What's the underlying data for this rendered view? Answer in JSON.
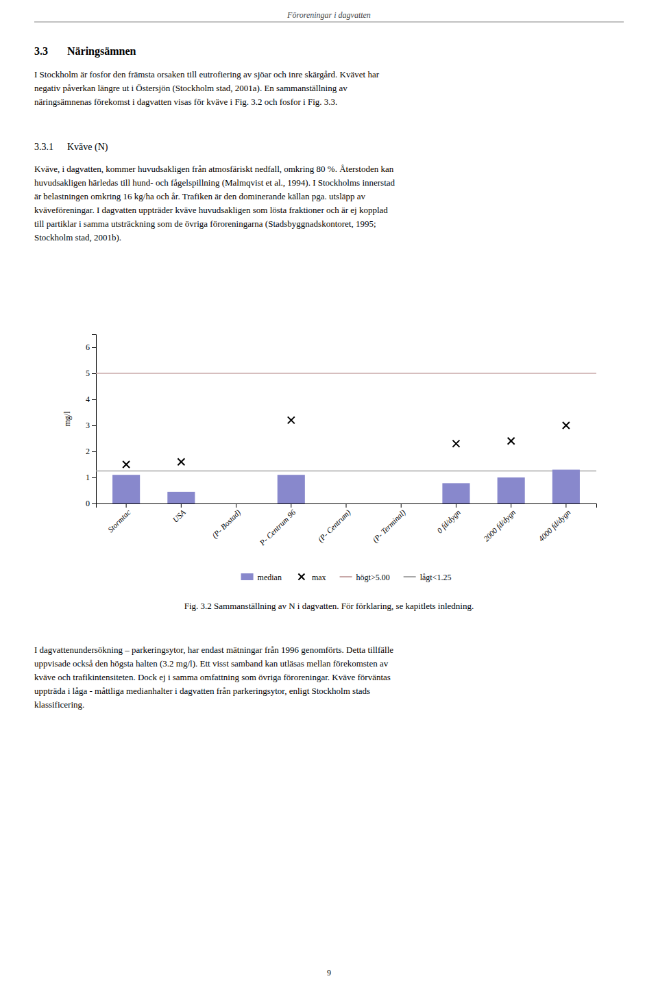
{
  "page_title": "Föroreningar i dagvatten",
  "section_heading_num": "3.3",
  "section_heading_text": "Näringsämnen",
  "body_text_1": [
    "I Stockholm är fosfor den främsta orsaken till eutrofiering av sjöar och inre skärgård. Kvävet har",
    "negativ påverkan längre ut i Östersjön (Stockholm stad, 2001a). En sammanställning av",
    "näringsämnenas förekomst i dagvatten visas för kväve i Fig. 3.2 och fosfor i Fig. 3.3."
  ],
  "subsection_num": "3.3.1",
  "subsection_text": "Kväve (N)",
  "body_text_2": [
    "Kväve, i dagvatten, kommer huvudsakligen från atmosfäriskt nedfall, omkring 80 %. Återstoden kan",
    "huvudsakligen härledas till hund- och fågelspillning (Malmqvist et al., 1994). I Stockholms innerstad",
    "är belastningen omkring 16 kg/ha och år. Trafiken är den dominerande källan pga. utsläpp av",
    "kväveföreningar. I dagvatten uppträder kväve huvudsakligen som lösta fraktioner och är ej kopplad",
    "till partiklar i samma utsträckning som de övriga föroreningarna (Stadsbyggnadskontoret, 1995;",
    "Stockholm stad, 2001b)."
  ],
  "fig_caption": "Fig. 3.2 Sammanställning av N i dagvatten. För förklaring, se kapitlets inledning.",
  "body_text_3": [
    "I dagvattenundersökning – parkeringsytor, har endast mätningar från 1996 genomförts. Detta tillfälle",
    "uppvisade också den högsta halten (3.2 mg/l). Ett visst samband kan utläsas mellan förekomsten av",
    "kväve och trafikintensiteten. Dock ej i samma omfattning som övriga föroreningar. Kväve förväntas",
    "uppträda i låga - måttliga medianhalter i dagvatten från parkeringsytor, enligt Stockholm stads",
    "klassificering."
  ],
  "page_number": "9",
  "chart_data": {
    "type": "bar",
    "categories": [
      "Stormtac",
      "USA",
      "(P- Bostad)",
      "P- Centrum 96",
      "(P- Centrum)",
      "(P- Terminal)",
      "0 fd/dygn",
      "2000 fd/dygn",
      "4000 fd/dygn"
    ],
    "series": [
      {
        "name": "median",
        "type": "bar",
        "color": "#8888cc",
        "values": [
          1.1,
          0.45,
          null,
          1.1,
          null,
          null,
          0.78,
          1.0,
          1.3
        ]
      },
      {
        "name": "max",
        "type": "scatter",
        "marker": "x",
        "color": "#000000",
        "values": [
          1.5,
          1.6,
          null,
          3.2,
          null,
          null,
          2.3,
          2.4,
          3.0
        ]
      }
    ],
    "reference_lines": [
      {
        "name": "högt>5.00",
        "value": 5.0,
        "color": "#c8a8a8"
      },
      {
        "name": "lågt<1.25",
        "value": 1.25,
        "color": "#a8a8a8"
      }
    ],
    "ylabel": "mg/l",
    "ylim": [
      0,
      6.5
    ],
    "yticks": [
      0,
      1,
      2,
      3,
      4,
      5,
      6
    ],
    "grid": false,
    "legend": "lower center"
  }
}
